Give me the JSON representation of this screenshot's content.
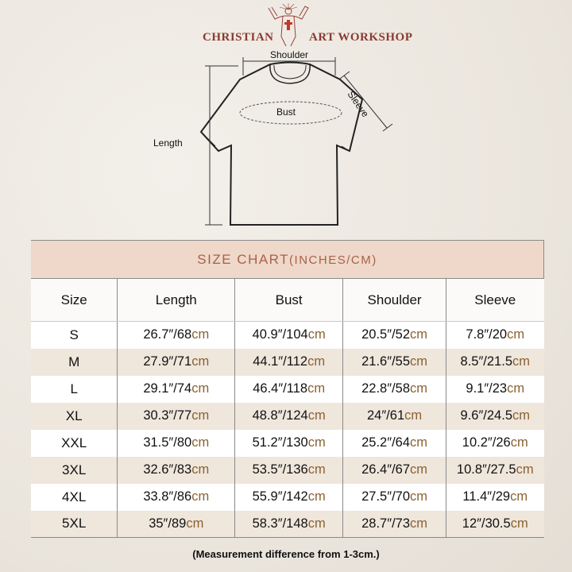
{
  "brand": {
    "left": "CHRISTIAN",
    "right": "ART WORKSHOP"
  },
  "diagram": {
    "shoulder": "Shoulder",
    "bust": "Bust",
    "sleeve": "Sleeve",
    "length": "Length"
  },
  "table": {
    "title": "SIZE CHART",
    "title_units": "(INCHES/CM)",
    "headers": [
      "Size",
      "Length",
      "Bust",
      "Shoulder",
      "Sleeve"
    ],
    "rows": [
      {
        "size": "S",
        "cells": [
          {
            "v": "26.7″/68",
            "u": "cm"
          },
          {
            "v": "40.9″/104",
            "u": "cm"
          },
          {
            "v": "20.5″/52",
            "u": "cm"
          },
          {
            "v": "7.8″/20",
            "u": "cm"
          }
        ]
      },
      {
        "size": "M",
        "cells": [
          {
            "v": "27.9″/71",
            "u": "cm"
          },
          {
            "v": "44.1″/112",
            "u": "cm"
          },
          {
            "v": "21.6″/55",
            "u": "cm"
          },
          {
            "v": "8.5″/21.5",
            "u": "cm"
          }
        ]
      },
      {
        "size": "L",
        "cells": [
          {
            "v": "29.1″/74",
            "u": "cm"
          },
          {
            "v": "46.4″/118",
            "u": "cm"
          },
          {
            "v": "22.8″/58",
            "u": "cm"
          },
          {
            "v": "9.1″/23",
            "u": "cm"
          }
        ]
      },
      {
        "size": "XL",
        "cells": [
          {
            "v": "30.3″/77",
            "u": "cm"
          },
          {
            "v": "48.8″/124",
            "u": "cm"
          },
          {
            "v": "24″/61",
            "u": "cm"
          },
          {
            "v": "9.6″/24.5",
            "u": "cm"
          }
        ]
      },
      {
        "size": "XXL",
        "cells": [
          {
            "v": "31.5″/80",
            "u": "cm"
          },
          {
            "v": "51.2″/130",
            "u": "cm"
          },
          {
            "v": "25.2″/64",
            "u": "cm"
          },
          {
            "v": "10.2″/26",
            "u": "cm"
          }
        ]
      },
      {
        "size": "3XL",
        "cells": [
          {
            "v": "32.6″/83",
            "u": "cm"
          },
          {
            "v": "53.5″/136",
            "u": "cm"
          },
          {
            "v": "26.4″/67",
            "u": "cm"
          },
          {
            "v": "10.8″/27.5",
            "u": "cm"
          }
        ]
      },
      {
        "size": "4XL",
        "cells": [
          {
            "v": "33.8″/86",
            "u": "cm"
          },
          {
            "v": "55.9″/142",
            "u": "cm"
          },
          {
            "v": "27.5″/70",
            "u": "cm"
          },
          {
            "v": "11.4″/29",
            "u": "cm"
          }
        ]
      },
      {
        "size": "5XL",
        "cells": [
          {
            "v": "35″/89",
            "u": "cm"
          },
          {
            "v": "58.3″/148",
            "u": "cm"
          },
          {
            "v": "28.7″/73",
            "u": "cm"
          },
          {
            "v": "12″/30.5",
            "u": "cm"
          }
        ]
      }
    ]
  },
  "note": "(Measurement difference from 1-3cm.)",
  "colors": {
    "brand": "#8a3a32",
    "title_bg": "#efd8c9",
    "title_text": "#a7614c",
    "unit": "#8a6232",
    "row_alt": "#efe6dc"
  }
}
